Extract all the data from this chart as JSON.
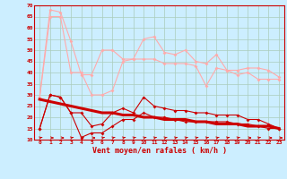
{
  "title": "",
  "xlabel": "Vent moyen/en rafales ( km/h )",
  "bg_color": "#cceeff",
  "grid_color": "#aaccbb",
  "x": [
    0,
    1,
    2,
    3,
    4,
    5,
    6,
    7,
    8,
    9,
    10,
    11,
    12,
    13,
    14,
    15,
    16,
    17,
    18,
    19,
    20,
    21,
    22,
    23
  ],
  "ylim": [
    10,
    70
  ],
  "yticks": [
    10,
    15,
    20,
    25,
    30,
    35,
    40,
    45,
    50,
    55,
    60,
    65,
    70
  ],
  "line_rafales_top": [
    29,
    68,
    67,
    54,
    39,
    39,
    50,
    50,
    46,
    46,
    55,
    56,
    49,
    48,
    50,
    45,
    44,
    48,
    41,
    41,
    42,
    42,
    41,
    38
  ],
  "line_rafales_bot": [
    29,
    65,
    65,
    40,
    40,
    30,
    30,
    32,
    45,
    46,
    46,
    46,
    44,
    44,
    44,
    43,
    34,
    42,
    41,
    39,
    40,
    37,
    37,
    37
  ],
  "line_wind_top": [
    15,
    30,
    29,
    22,
    22,
    16,
    17,
    22,
    24,
    22,
    29,
    25,
    24,
    23,
    23,
    22,
    22,
    21,
    21,
    21,
    19,
    19,
    17,
    15
  ],
  "line_wind_bot": [
    15,
    30,
    29,
    22,
    11,
    13,
    13,
    16,
    19,
    19,
    22,
    20,
    20,
    19,
    18,
    18,
    18,
    18,
    18,
    17,
    17,
    16,
    15,
    15
  ],
  "line_trend": [
    28,
    27,
    26,
    25,
    24,
    23,
    22,
    22,
    21,
    21,
    20,
    20,
    19,
    19,
    19,
    18,
    18,
    17,
    17,
    17,
    16,
    16,
    16,
    15
  ],
  "color_light": "#ffaaaa",
  "color_dark": "#cc0000",
  "arrow_angles": [
    45,
    0,
    0,
    45,
    45,
    0,
    45,
    45,
    45,
    45,
    45,
    45,
    45,
    45,
    45,
    45,
    45,
    45,
    45,
    45,
    0,
    45,
    0,
    0
  ]
}
